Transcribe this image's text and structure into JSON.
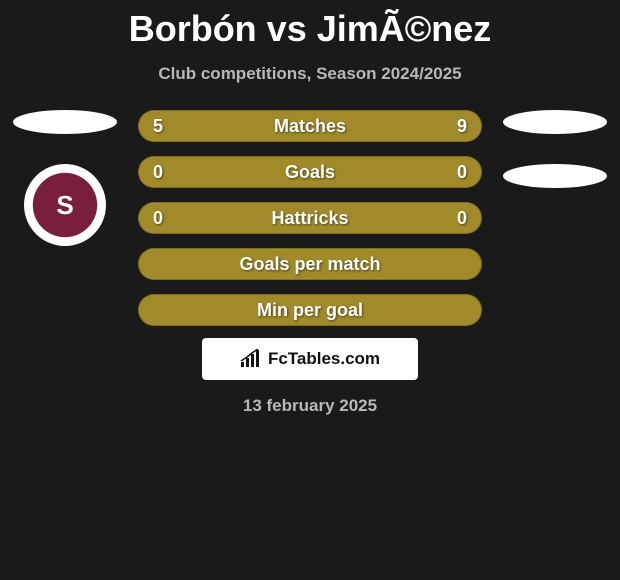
{
  "title": "Borbón vs JimÃ©nez",
  "subtitle": "Club competitions, Season 2024/2025",
  "date": "13 february 2025",
  "brand": {
    "text": "FcTables.com"
  },
  "colors": {
    "bg": "#1a1a1a",
    "bar_left": "#a08a2a",
    "bar_right": "#a08a2a",
    "bar_full": "#a08a2a",
    "flag": "#ffffff",
    "crest_primary": "#7a1e3d",
    "text_main": "#ffffff",
    "text_sub": "#b8b8b8"
  },
  "left_badges": {
    "show_crest": true,
    "crest_letter": "S"
  },
  "right_badges": {
    "show_crest": false
  },
  "bars": [
    {
      "label": "Matches",
      "left": "5",
      "right": "9",
      "left_pct": 36,
      "right_pct": 64,
      "left_color": "#a08a2a",
      "right_color": "#a08a2a",
      "show_vals": true
    },
    {
      "label": "Goals",
      "left": "0",
      "right": "0",
      "left_pct": 0,
      "right_pct": 0,
      "left_color": "#a08a2a",
      "right_color": "#a08a2a",
      "show_vals": true
    },
    {
      "label": "Hattricks",
      "left": "0",
      "right": "0",
      "left_pct": 0,
      "right_pct": 0,
      "left_color": "#a08a2a",
      "right_color": "#a08a2a",
      "show_vals": true
    },
    {
      "label": "Goals per match",
      "left": "",
      "right": "",
      "left_pct": 0,
      "right_pct": 0,
      "left_color": "#a08a2a",
      "right_color": "#a08a2a",
      "show_vals": false
    },
    {
      "label": "Min per goal",
      "left": "",
      "right": "",
      "left_pct": 0,
      "right_pct": 0,
      "left_color": "#a08a2a",
      "right_color": "#a08a2a",
      "show_vals": false
    }
  ]
}
